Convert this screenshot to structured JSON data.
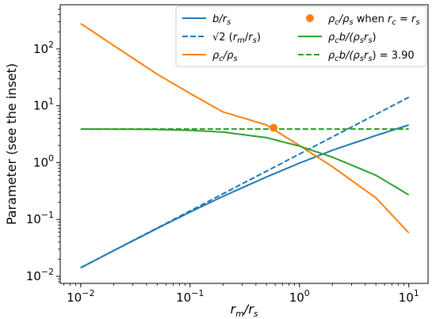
{
  "chart_data": {
    "type": "line",
    "xscale": "log",
    "yscale": "log",
    "xlim": [
      0.0065,
      15
    ],
    "ylim": [
      0.0075,
      600
    ],
    "grid": false,
    "legend_position": "top-right",
    "xlabel_text": "r",
    "xlabel_sub": "m",
    "xlabel_mid": "/r",
    "xlabel_sub2": "s",
    "ylabel": "Parameter (see the inset)",
    "xticks": [
      {
        "value": 0.01,
        "base": "10",
        "exp": "−2"
      },
      {
        "value": 0.1,
        "base": "10",
        "exp": "−1"
      },
      {
        "value": 1,
        "base": "10",
        "exp": "0"
      },
      {
        "value": 10,
        "base": "10",
        "exp": "1"
      }
    ],
    "yticks": [
      {
        "value": 0.01,
        "base": "10",
        "exp": "−2"
      },
      {
        "value": 0.1,
        "base": "10",
        "exp": "−1"
      },
      {
        "value": 1,
        "base": "10",
        "exp": "0"
      },
      {
        "value": 10,
        "base": "10",
        "exp": "1"
      },
      {
        "value": 100,
        "base": "10",
        "exp": "2"
      }
    ],
    "series": [
      {
        "name": "b/r_s",
        "legend_parts": [
          [
            "b/r",
            "i"
          ],
          [
            "s",
            "sub"
          ]
        ],
        "color": "#1f77b4",
        "dash": "solid",
        "x": [
          0.01,
          0.02,
          0.05,
          0.1,
          0.2,
          0.5,
          1,
          2,
          5,
          10
        ],
        "y": [
          0.0141,
          0.0282,
          0.0695,
          0.135,
          0.255,
          0.56,
          0.98,
          1.65,
          3.0,
          4.6
        ]
      },
      {
        "name": "√2 (r_m/r_s)",
        "legend_parts": [
          [
            "√2 (",
            "n"
          ],
          [
            "r",
            "i"
          ],
          [
            "m",
            "sub"
          ],
          [
            "/",
            "n"
          ],
          [
            "r",
            "i"
          ],
          [
            "s",
            "sub"
          ],
          [
            ")",
            "n"
          ]
        ],
        "color": "#1f77b4",
        "dash": "dashed",
        "x": [
          0.01,
          10
        ],
        "y": [
          0.01414,
          14.14
        ]
      },
      {
        "name": "ρ_c/ρ_s",
        "legend_parts": [
          [
            "ρ",
            "i"
          ],
          [
            "c",
            "sub"
          ],
          [
            "/ρ",
            "i"
          ],
          [
            "s",
            "sub"
          ]
        ],
        "color": "#ff7f0e",
        "dash": "solid",
        "x": [
          0.01,
          0.02,
          0.05,
          0.1,
          0.2,
          0.5,
          1,
          2,
          5,
          10
        ],
        "y": [
          280,
          115,
          36,
          16.5,
          7.8,
          4.6,
          2.0,
          0.85,
          0.24,
          0.058
        ]
      },
      {
        "name": "ρ_c b/(ρ_s r_s)",
        "legend_parts": [
          [
            "ρ",
            "i"
          ],
          [
            "c",
            "sub"
          ],
          [
            "b/(ρ",
            "i"
          ],
          [
            "s",
            "sub"
          ],
          [
            "r",
            "i"
          ],
          [
            "s",
            "sub"
          ],
          [
            ")",
            "n"
          ]
        ],
        "color": "#2ca02c",
        "dash": "solid",
        "x": [
          0.01,
          0.02,
          0.05,
          0.1,
          0.2,
          0.5,
          1,
          2,
          5,
          10
        ],
        "y": [
          3.9,
          3.88,
          3.83,
          3.7,
          3.45,
          2.75,
          1.95,
          1.25,
          0.6,
          0.27
        ]
      },
      {
        "name": "ρ_c b/(ρ_s r_s) = 3.90",
        "legend_parts": [
          [
            "ρ",
            "i"
          ],
          [
            "c",
            "sub"
          ],
          [
            "b/(ρ",
            "i"
          ],
          [
            "s",
            "sub"
          ],
          [
            "r",
            "i"
          ],
          [
            "s",
            "sub"
          ],
          [
            ") = 3.90",
            "n"
          ]
        ],
        "color": "#2ca02c",
        "dash": "dashed",
        "x": [
          0.01,
          10
        ],
        "y": [
          3.9,
          3.9
        ]
      }
    ],
    "points": [
      {
        "name": "ρ_c/ρ_s when r_c = r_s",
        "legend_parts": [
          [
            "ρ",
            "i"
          ],
          [
            "c",
            "sub"
          ],
          [
            "/ρ",
            "i"
          ],
          [
            "s",
            "sub"
          ],
          [
            " when ",
            "n"
          ],
          [
            "r",
            "i"
          ],
          [
            "c",
            "sub"
          ],
          [
            " = ",
            "n"
          ],
          [
            "r",
            "i"
          ],
          [
            "s",
            "sub"
          ]
        ],
        "color": "#ff7f0e",
        "x": 0.58,
        "y": 4.1
      }
    ]
  }
}
